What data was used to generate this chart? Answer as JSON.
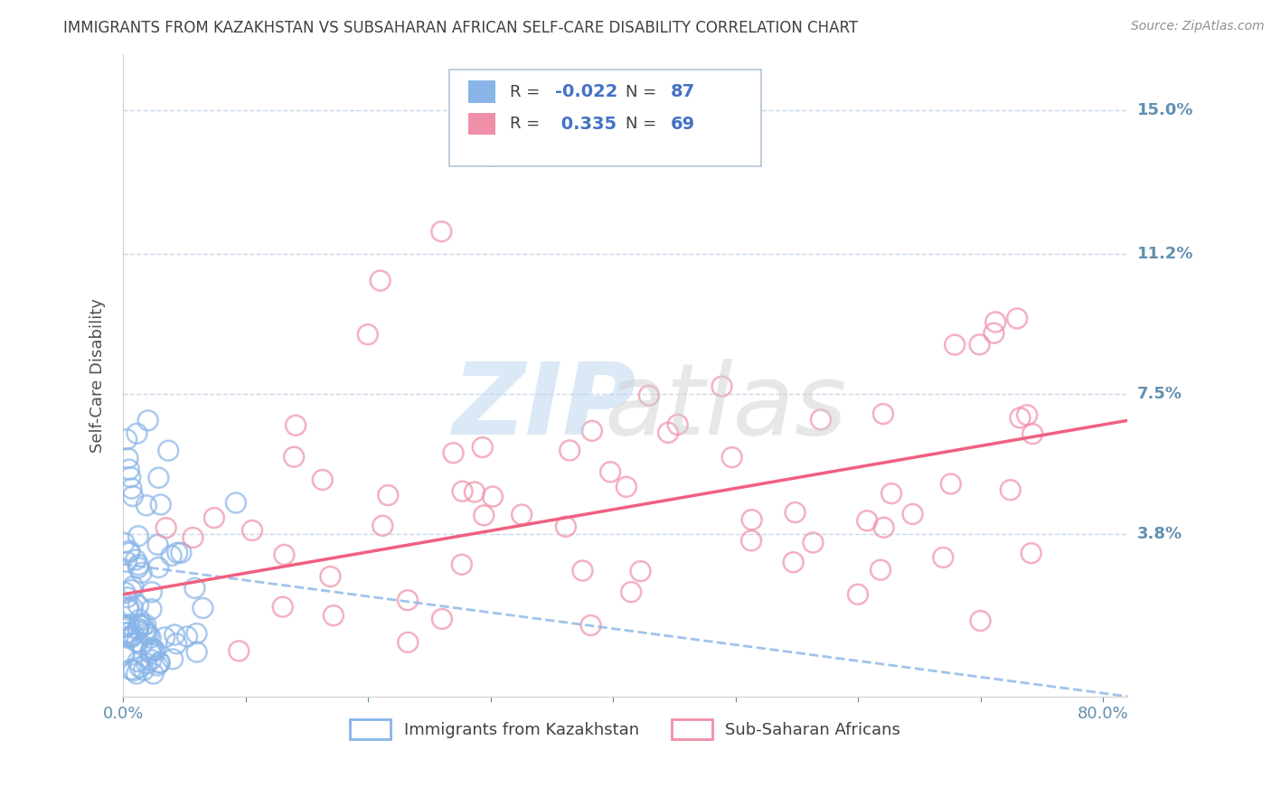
{
  "title": "IMMIGRANTS FROM KAZAKHSTAN VS SUBSAHARAN AFRICAN SELF-CARE DISABILITY CORRELATION CHART",
  "source": "Source: ZipAtlas.com",
  "ylabel": "Self-Care Disability",
  "legend1_label": "Immigrants from Kazakhstan",
  "legend2_label": "Sub-Saharan Africans",
  "R1": -0.022,
  "N1": 87,
  "R2": 0.335,
  "N2": 69,
  "color1": "#88b4e8",
  "color2": "#f090a8",
  "trend1_color": "#88b4e8",
  "trend2_color": "#f06080",
  "xlim": [
    0.0,
    0.82
  ],
  "ylim": [
    -0.005,
    0.165
  ],
  "yticks": [
    0.038,
    0.075,
    0.112,
    0.15
  ],
  "ytick_labels": [
    "3.8%",
    "7.5%",
    "11.2%",
    "15.0%"
  ],
  "xticks": [
    0.0,
    0.1,
    0.2,
    0.3,
    0.4,
    0.5,
    0.6,
    0.7,
    0.8
  ],
  "xtick_labels": [
    "0.0%",
    "",
    "",
    "",
    "",
    "",
    "",
    "",
    "80.0%"
  ],
  "background_color": "#ffffff",
  "grid_color": "#c8d8e8",
  "title_color": "#404040",
  "axis_color": "#6090b0",
  "trend1_start_y": 0.03,
  "trend1_end_y": -0.005,
  "trend2_start_y": 0.022,
  "trend2_end_y": 0.068,
  "trend1_end_x": 0.82,
  "trend2_end_x": 0.82
}
